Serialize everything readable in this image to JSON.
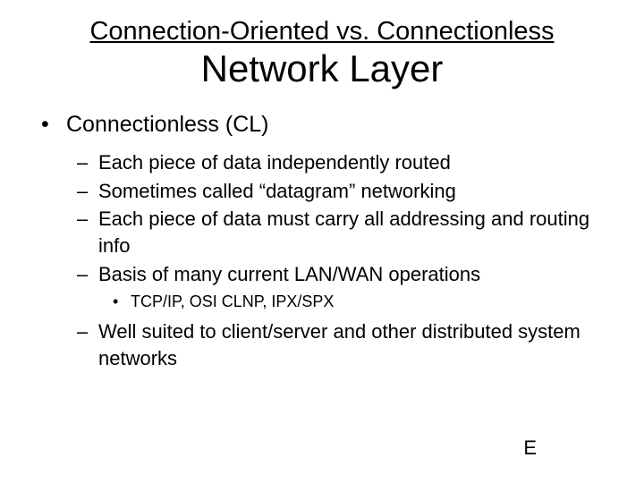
{
  "title": {
    "line1": "Connection-Oriented vs. Connectionless",
    "line2": "Network Layer"
  },
  "level1": {
    "text": "Connectionless (CL)"
  },
  "level2": [
    {
      "text": "Each piece of data independently routed"
    },
    {
      "text": "Sometimes called “datagram” networking"
    },
    {
      "text": "Each piece of data must carry all addressing and routing info"
    },
    {
      "text": "Basis of many current LAN/WAN operations"
    }
  ],
  "level3": {
    "text": "TCP/IP, OSI CLNP, IPX/SPX"
  },
  "level2b": [
    {
      "text": "Well suited to client/server and other distributed system  networks"
    }
  ],
  "footer": "E",
  "colors": {
    "background": "#ffffff",
    "text": "#000000"
  },
  "fonts": {
    "title_top_size_pt": 29,
    "title_bottom_size_pt": 42,
    "l1_size_pt": 25,
    "l2_size_pt": 22,
    "l3_size_pt": 18
  }
}
